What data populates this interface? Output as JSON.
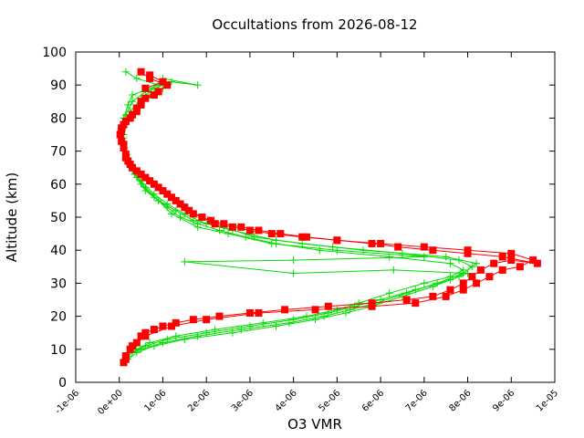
{
  "chart_data": {
    "type": "line",
    "title": "Occultations from 2026-08-12",
    "xlabel": "O3 VMR",
    "ylabel": "Altitude (km)",
    "xlim": [
      -1e-06,
      1e-05
    ],
    "ylim": [
      0,
      100
    ],
    "x_ticks": [
      "-1e-06",
      "0e+00",
      "1e-06",
      "2e-06",
      "3e-06",
      "4e-06",
      "5e-06",
      "6e-06",
      "7e-06",
      "8e-06",
      "9e-06",
      "1e-05"
    ],
    "y_ticks": [
      "0",
      "10",
      "20",
      "30",
      "40",
      "50",
      "60",
      "70",
      "80",
      "90",
      "100"
    ],
    "grid": false,
    "legend": "none",
    "series": [
      {
        "color": "#00dd00",
        "marker": "plus",
        "points": [
          [
            1e-07,
            6
          ],
          [
            2e-07,
            8
          ],
          [
            4e-07,
            10
          ],
          [
            7e-07,
            12
          ],
          [
            1.3e-06,
            14
          ],
          [
            2.2e-06,
            16
          ],
          [
            3.3e-06,
            18
          ],
          [
            4.3e-06,
            20
          ],
          [
            5e-06,
            22
          ],
          [
            5.5e-06,
            24
          ],
          [
            6.2e-06,
            27
          ],
          [
            7e-06,
            30
          ],
          [
            7.6e-06,
            32
          ],
          [
            7.9e-06,
            34
          ],
          [
            7.6e-06,
            36
          ],
          [
            6.2e-06,
            38
          ],
          [
            4.6e-06,
            40
          ],
          [
            3.6e-06,
            42
          ],
          [
            2.9e-06,
            44
          ],
          [
            2.3e-06,
            46
          ],
          [
            1.8e-06,
            48
          ],
          [
            1.4e-06,
            50
          ],
          [
            1.1e-06,
            53
          ],
          [
            8e-07,
            56
          ],
          [
            5e-07,
            60
          ],
          [
            3e-07,
            64
          ],
          [
            1.5e-07,
            68
          ],
          [
            8e-08,
            72
          ],
          [
            5e-08,
            76
          ],
          [
            1e-07,
            80
          ],
          [
            2e-07,
            84
          ],
          [
            3e-07,
            87
          ],
          [
            9e-07,
            90
          ],
          [
            4e-07,
            92
          ],
          [
            1.5e-07,
            94
          ]
        ]
      },
      {
        "color": "#00dd00",
        "marker": "plus",
        "points": [
          [
            2e-07,
            7
          ],
          [
            4e-07,
            9
          ],
          [
            8e-07,
            11
          ],
          [
            1.5e-06,
            13
          ],
          [
            2.6e-06,
            15
          ],
          [
            3.6e-06,
            17
          ],
          [
            4.5e-06,
            19
          ],
          [
            5.2e-06,
            21
          ],
          [
            5.8e-06,
            23
          ],
          [
            6.5e-06,
            26
          ],
          [
            7.2e-06,
            29
          ],
          [
            7.8e-06,
            32
          ],
          [
            8.1e-06,
            35
          ],
          [
            7.8e-06,
            37
          ],
          [
            6.5e-06,
            39
          ],
          [
            4.9e-06,
            41
          ],
          [
            3.6e-06,
            43
          ],
          [
            2.6e-06,
            46
          ],
          [
            2e-06,
            48
          ],
          [
            1.5e-06,
            51
          ],
          [
            1.1e-06,
            54
          ],
          [
            8e-07,
            57
          ],
          [
            5e-07,
            61
          ],
          [
            3e-07,
            65
          ],
          [
            1.8e-07,
            69
          ],
          [
            1e-07,
            73
          ],
          [
            7e-08,
            77
          ],
          [
            1.5e-07,
            81
          ],
          [
            3e-07,
            85
          ],
          [
            6e-07,
            88
          ],
          [
            1.2e-06,
            91
          ],
          [
            1.8e-06,
            90
          ],
          [
            1e-06,
            92
          ]
        ]
      },
      {
        "color": "#00dd00",
        "marker": "plus",
        "points": [
          [
            3e-07,
            9
          ],
          [
            6e-07,
            11
          ],
          [
            1.1e-06,
            13
          ],
          [
            2e-06,
            15
          ],
          [
            3e-06,
            17
          ],
          [
            4e-06,
            19
          ],
          [
            4.8e-06,
            21
          ],
          [
            5.4e-06,
            23
          ],
          [
            6e-06,
            25
          ],
          [
            6.8e-06,
            28
          ],
          [
            7.6e-06,
            31
          ],
          [
            8e-06,
            33
          ],
          [
            6.3e-06,
            34
          ],
          [
            4e-06,
            33
          ],
          [
            1.5e-06,
            36.5
          ],
          [
            4e-06,
            37
          ],
          [
            7e-06,
            38
          ],
          [
            5e-06,
            40
          ],
          [
            3.5e-06,
            42
          ],
          [
            2.5e-06,
            45
          ],
          [
            1.8e-06,
            47
          ],
          [
            1.2e-06,
            51
          ],
          [
            9e-07,
            55
          ],
          [
            6e-07,
            59
          ],
          [
            3.5e-07,
            63
          ],
          [
            2e-07,
            67
          ],
          [
            1.2e-07,
            71
          ],
          [
            1e-07,
            75
          ],
          [
            2e-07,
            79
          ],
          [
            4e-07,
            83
          ],
          [
            7e-07,
            87
          ],
          [
            1e-06,
            89
          ]
        ]
      },
      {
        "color": "#00dd00",
        "marker": "plus",
        "points": [
          [
            1.5e-07,
            8
          ],
          [
            5e-07,
            10
          ],
          [
            1e-06,
            12
          ],
          [
            1.8e-06,
            14
          ],
          [
            2.8e-06,
            16
          ],
          [
            3.9e-06,
            18
          ],
          [
            4.7e-06,
            20
          ],
          [
            5.3e-06,
            22
          ],
          [
            5.9e-06,
            24
          ],
          [
            6.6e-06,
            27
          ],
          [
            7.3e-06,
            30
          ],
          [
            7.9e-06,
            33
          ],
          [
            8.2e-06,
            36
          ],
          [
            7.5e-06,
            38
          ],
          [
            5.6e-06,
            40
          ],
          [
            4.2e-06,
            42
          ],
          [
            3.1e-06,
            44
          ],
          [
            2.4e-06,
            47
          ],
          [
            1.7e-06,
            49
          ],
          [
            1.3e-06,
            52
          ],
          [
            9e-07,
            55
          ],
          [
            6e-07,
            58
          ],
          [
            4e-07,
            62
          ],
          [
            2.5e-07,
            66
          ],
          [
            1.5e-07,
            70
          ],
          [
            1e-07,
            74
          ],
          [
            1.2e-07,
            78
          ],
          [
            2.5e-07,
            82
          ],
          [
            5e-07,
            86
          ],
          [
            8e-07,
            89
          ]
        ]
      },
      {
        "color": "#ff0000",
        "marker": "square",
        "points": [
          [
            1e-07,
            6
          ],
          [
            1.5e-07,
            8
          ],
          [
            2.5e-07,
            10
          ],
          [
            4e-07,
            12
          ],
          [
            5e-07,
            14
          ],
          [
            6e-07,
            15
          ],
          [
            8e-07,
            16
          ],
          [
            1e-06,
            17
          ],
          [
            1.3e-06,
            18
          ],
          [
            1.7e-06,
            19
          ],
          [
            2.3e-06,
            20
          ],
          [
            3e-06,
            21
          ],
          [
            3.8e-06,
            22
          ],
          [
            4.8e-06,
            23
          ],
          [
            5.8e-06,
            24
          ],
          [
            6.6e-06,
            25
          ],
          [
            7.2e-06,
            26
          ],
          [
            7.6e-06,
            28
          ],
          [
            7.9e-06,
            30
          ],
          [
            8.1e-06,
            32
          ],
          [
            8.3e-06,
            34
          ],
          [
            8.6e-06,
            36
          ],
          [
            9e-06,
            37
          ],
          [
            9.6e-06,
            36
          ],
          [
            8.8e-06,
            38
          ],
          [
            8e-06,
            39
          ],
          [
            7.2e-06,
            40
          ],
          [
            6.4e-06,
            41
          ],
          [
            5.8e-06,
            42
          ],
          [
            5e-06,
            43
          ],
          [
            4.3e-06,
            44
          ],
          [
            3.7e-06,
            45
          ],
          [
            3.2e-06,
            46
          ],
          [
            2.8e-06,
            47
          ],
          [
            2.4e-06,
            48
          ],
          [
            2.1e-06,
            49
          ],
          [
            1.9e-06,
            50
          ],
          [
            1.7e-06,
            51
          ],
          [
            1.5e-06,
            53
          ],
          [
            1.3e-06,
            55
          ],
          [
            1.1e-06,
            57
          ],
          [
            9e-07,
            59
          ],
          [
            7e-07,
            61
          ],
          [
            5e-07,
            63
          ],
          [
            3e-07,
            65
          ],
          [
            2e-07,
            67
          ],
          [
            1.5e-07,
            69
          ],
          [
            1e-07,
            71
          ],
          [
            5e-08,
            73
          ],
          [
            2e-08,
            75
          ],
          [
            5e-08,
            77
          ],
          [
            1.5e-07,
            79
          ],
          [
            3e-07,
            81
          ],
          [
            4e-07,
            83
          ],
          [
            5e-07,
            85
          ],
          [
            8e-07,
            87
          ],
          [
            6e-07,
            89
          ],
          [
            1e-06,
            91
          ],
          [
            7e-07,
            93
          ]
        ]
      },
      {
        "color": "#ff0000",
        "marker": "square",
        "points": [
          [
            1.5e-07,
            7
          ],
          [
            3e-07,
            11
          ],
          [
            6e-07,
            14
          ],
          [
            1.2e-06,
            17
          ],
          [
            2e-06,
            19
          ],
          [
            3.2e-06,
            21
          ],
          [
            4.5e-06,
            22
          ],
          [
            5.8e-06,
            23
          ],
          [
            6.8e-06,
            24
          ],
          [
            7.5e-06,
            26
          ],
          [
            7.9e-06,
            28
          ],
          [
            8.2e-06,
            30
          ],
          [
            8.5e-06,
            32
          ],
          [
            8.8e-06,
            34
          ],
          [
            9.2e-06,
            35
          ],
          [
            9.5e-06,
            37
          ],
          [
            9e-06,
            39
          ],
          [
            8e-06,
            40
          ],
          [
            7e-06,
            41
          ],
          [
            6e-06,
            42
          ],
          [
            5e-06,
            43
          ],
          [
            4.2e-06,
            44
          ],
          [
            3.5e-06,
            45
          ],
          [
            3e-06,
            46
          ],
          [
            2.6e-06,
            47
          ],
          [
            2.2e-06,
            48
          ],
          [
            1.9e-06,
            50
          ],
          [
            1.6e-06,
            52
          ],
          [
            1.4e-06,
            54
          ],
          [
            1.2e-06,
            56
          ],
          [
            1e-06,
            58
          ],
          [
            8e-07,
            60
          ],
          [
            6e-07,
            62
          ],
          [
            4e-07,
            64
          ],
          [
            2.5e-07,
            66
          ],
          [
            1.5e-07,
            68
          ],
          [
            1e-07,
            72
          ],
          [
            5e-08,
            76
          ],
          [
            1e-07,
            78
          ],
          [
            2.5e-07,
            80
          ],
          [
            4e-07,
            82
          ],
          [
            5e-07,
            84
          ],
          [
            6e-07,
            86
          ],
          [
            9e-07,
            88
          ],
          [
            1.1e-06,
            90
          ],
          [
            7e-07,
            92
          ],
          [
            5e-07,
            94
          ]
        ]
      }
    ]
  }
}
